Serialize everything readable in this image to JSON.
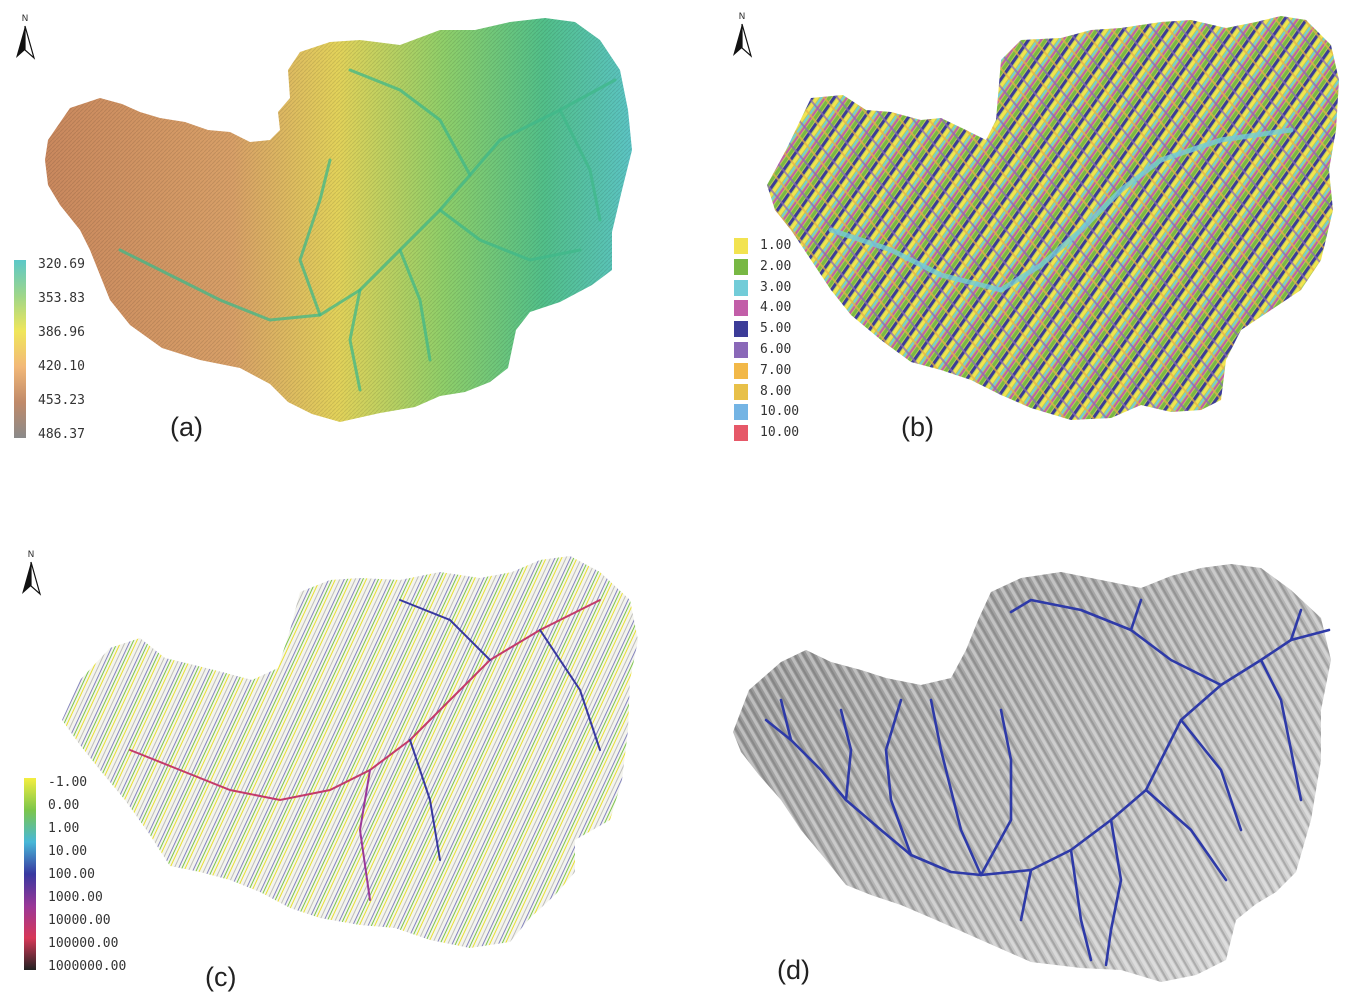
{
  "north_label": "N",
  "panels": [
    {
      "id": "a",
      "label": "(a)",
      "legend_type": "ramp",
      "legend": [
        "320.69",
        "353.83",
        "386.96",
        "420.10",
        "453.23",
        "486.37"
      ],
      "ramp_colors": [
        "#5cc8c8",
        "#9ed68a",
        "#f0e65a",
        "#f2b878",
        "#c08a6a",
        "#8a8a8a"
      ]
    },
    {
      "id": "b",
      "label": "(b)",
      "legend_type": "classes",
      "legend": [
        {
          "label": "1.00",
          "color": "#f2e350"
        },
        {
          "label": "2.00",
          "color": "#78b844"
        },
        {
          "label": "3.00",
          "color": "#72ccd8"
        },
        {
          "label": "4.00",
          "color": "#c25ea8"
        },
        {
          "label": "5.00",
          "color": "#3c3c98"
        },
        {
          "label": "6.00",
          "color": "#8a68b8"
        },
        {
          "label": "7.00",
          "color": "#f2b848"
        },
        {
          "label": "8.00",
          "color": "#e8c048"
        },
        {
          "label": "10.00",
          "color": "#74b4e4"
        },
        {
          "label": "10.00",
          "color": "#e65868"
        }
      ]
    },
    {
      "id": "c",
      "label": "(c)",
      "legend_type": "ramp",
      "legend": [
        "-1.00",
        "0.00",
        "1.00",
        "10.00",
        "100.00",
        "1000.00",
        "10000.00",
        "100000.00",
        "1000000.00"
      ],
      "ramp_colors": [
        "#f4ee40",
        "#7cc64a",
        "#48b8d8",
        "#3838a0",
        "#9a3898",
        "#d83858",
        "#222222"
      ]
    },
    {
      "id": "d",
      "label": "(d)",
      "legend_type": "none",
      "legend": []
    }
  ],
  "colors": {
    "stream": "#2e3aa8",
    "hillshade_light": "#dadada",
    "hillshade_dark": "#6e6e6e"
  }
}
